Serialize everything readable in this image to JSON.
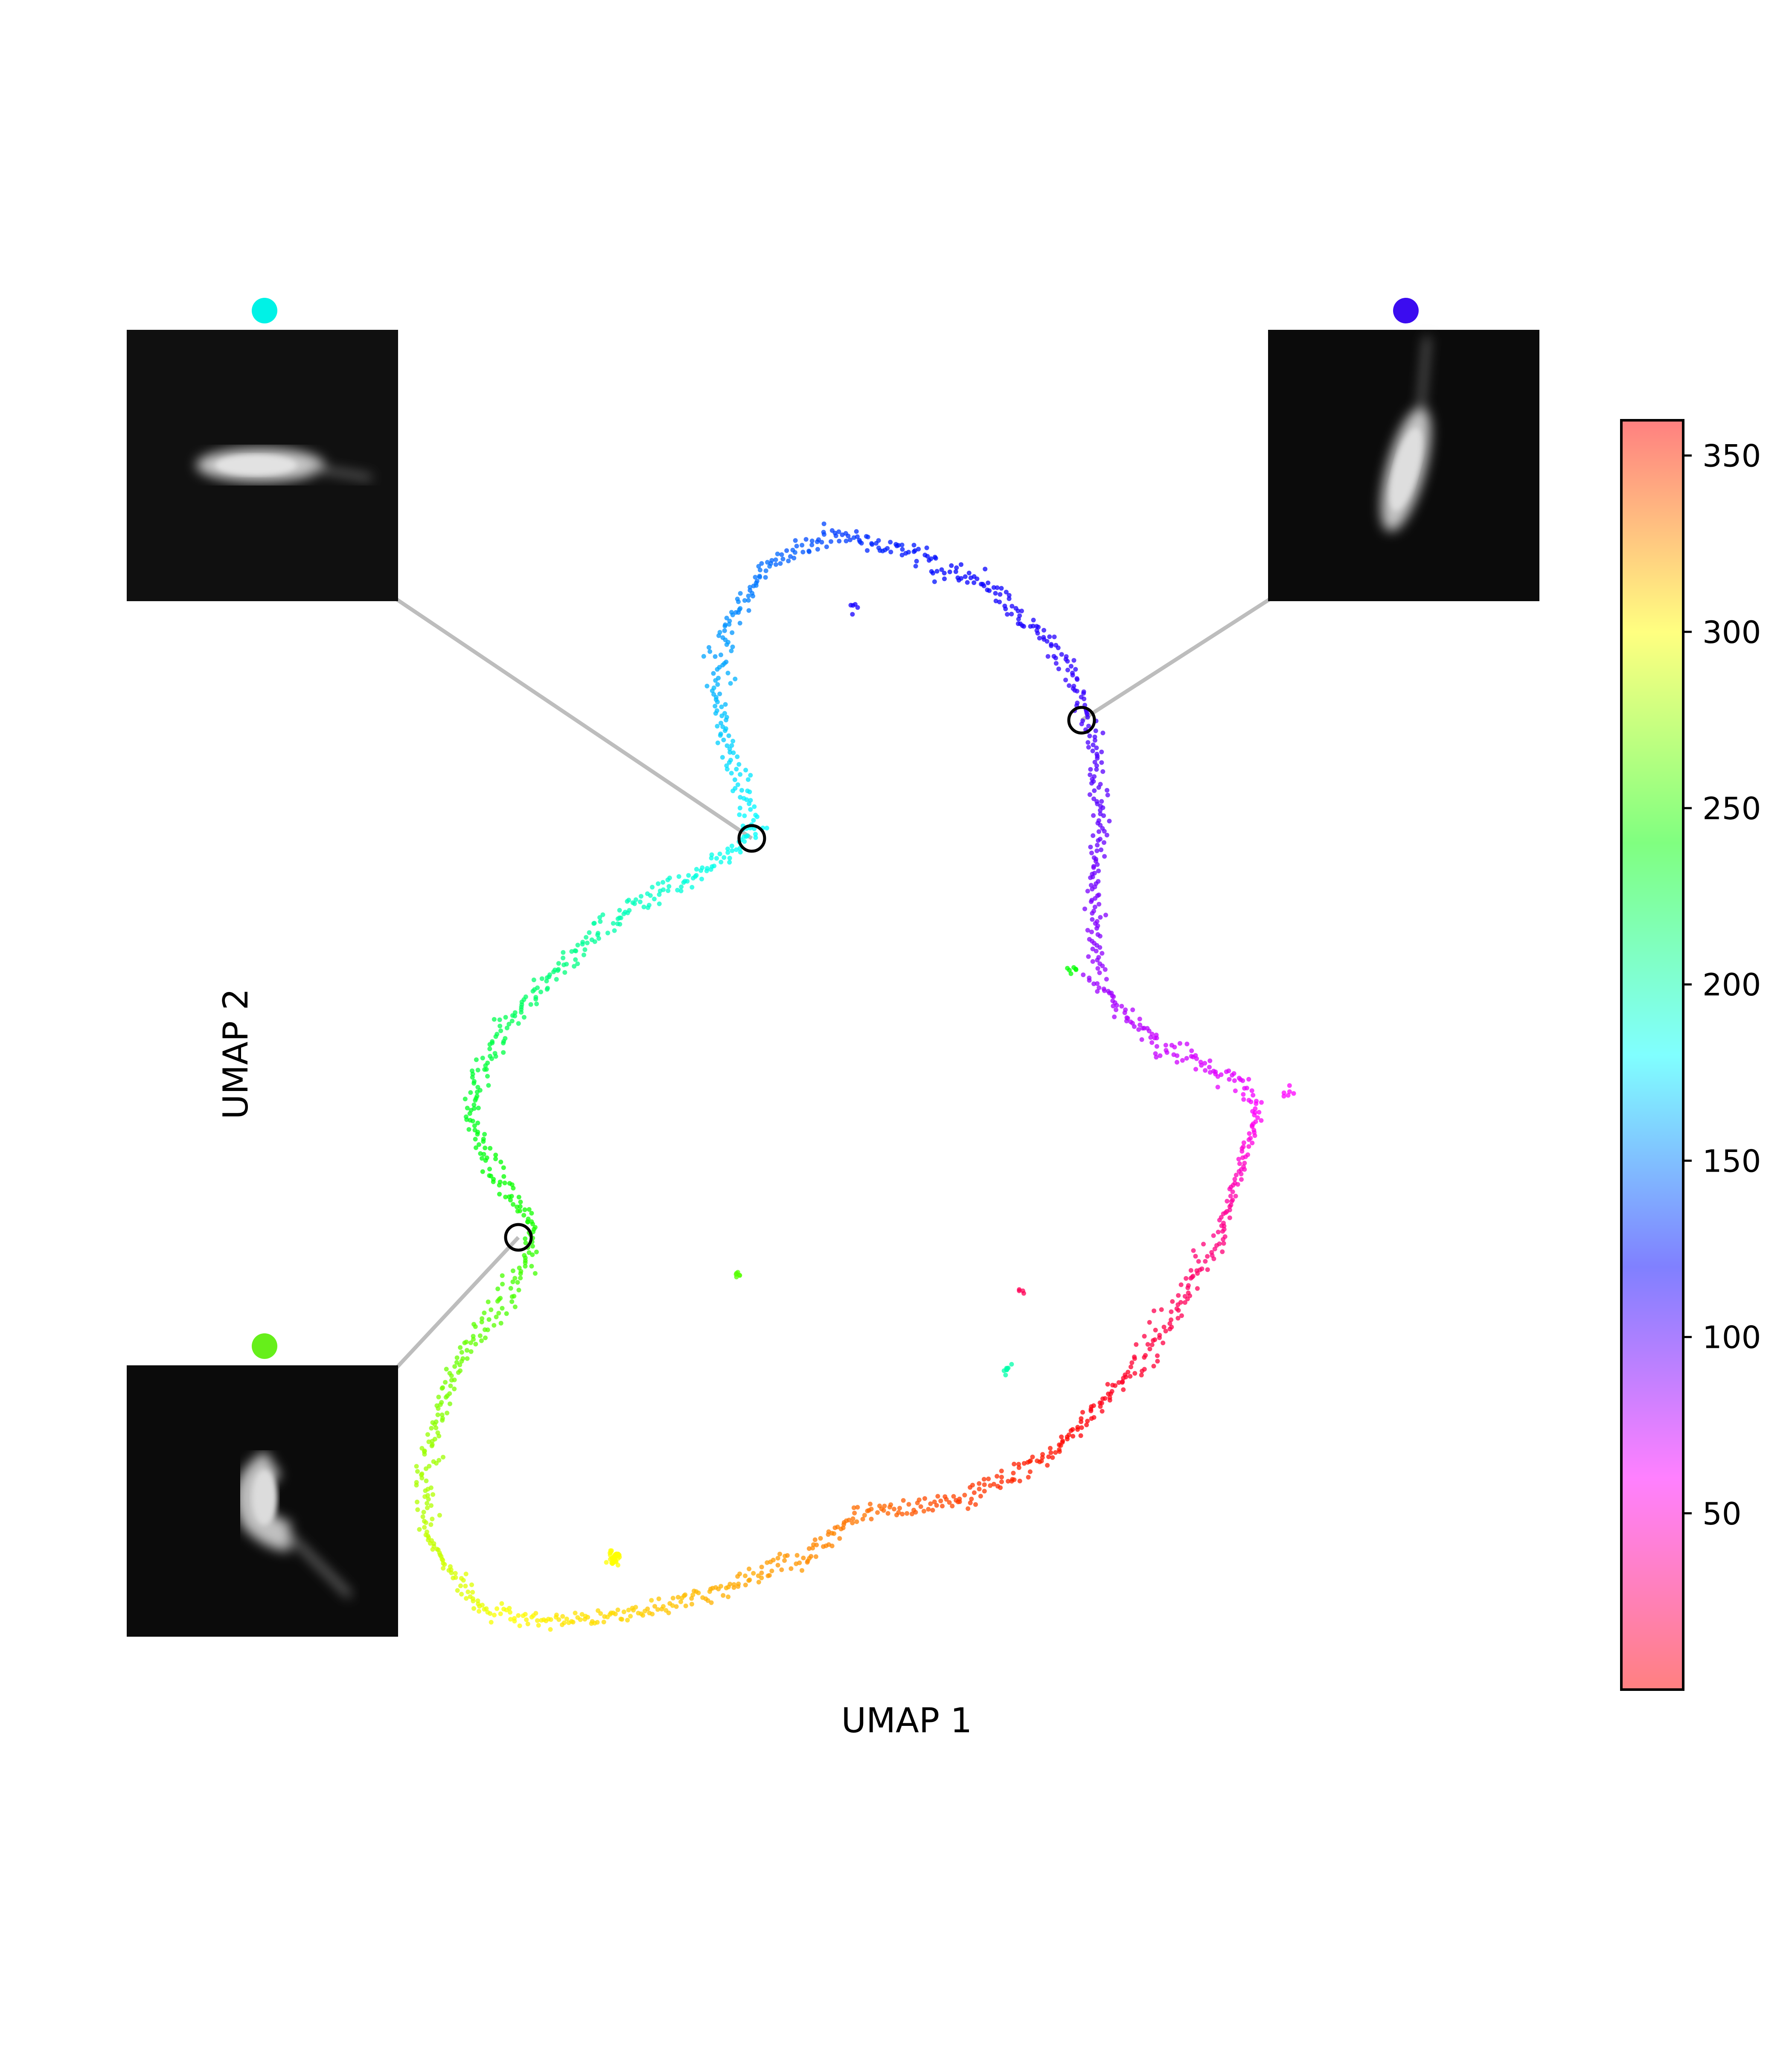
{
  "chart_data": {
    "type": "scatter",
    "title": "",
    "xlabel": "UMAP 1",
    "ylabel": "UMAP 2",
    "axes_visible": false,
    "grid": false,
    "color_encoding": "angle (hue)",
    "colorbar": {
      "min": 0,
      "max": 360,
      "ticks": [
        50,
        100,
        150,
        200,
        250,
        300,
        350
      ],
      "colormap": "hsv",
      "alpha": 0.5
    },
    "trajectory_hue_order": "point hue follows the closed ring: magenta/pink (right) -> red/orange (bottom) -> yellow (bottom-left) -> green (left) -> cyan (top-left) -> blue (top) -> violet (right)",
    "highlighted_points": [
      {
        "id": "cyan",
        "marker_color": "#00f2e6",
        "thumbnail": "worm oriented horizontally"
      },
      {
        "id": "blue",
        "marker_color": "#3b0cf0",
        "thumbnail": "worm oriented near-vertical, tilted"
      },
      {
        "id": "green",
        "marker_color": "#66ef1a",
        "thumbnail": "worm curled with tail down-right"
      }
    ]
  }
}
